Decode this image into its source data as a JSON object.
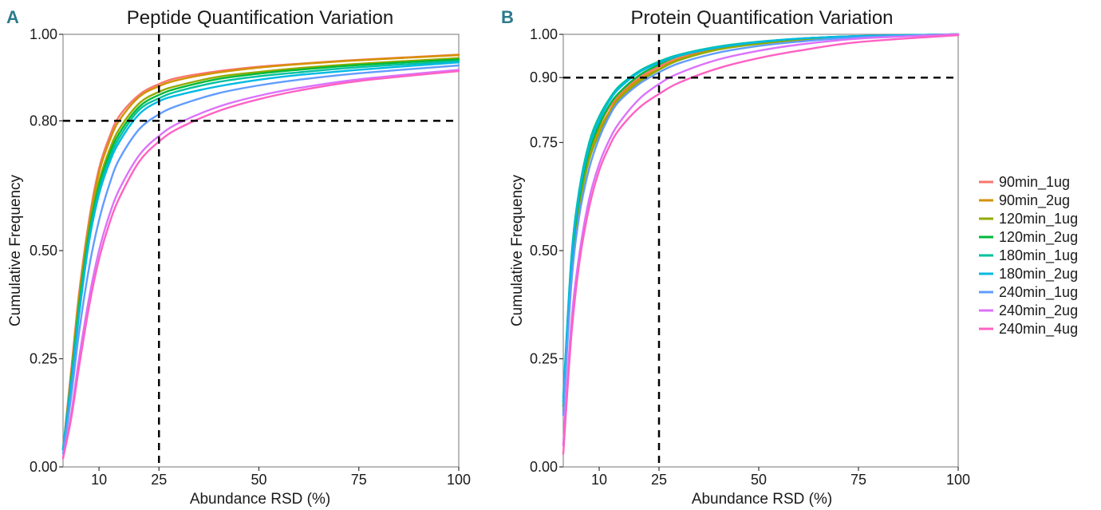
{
  "panels": [
    {
      "letter": "A"
    },
    {
      "letter": "B"
    }
  ],
  "legend": [
    {
      "name": "90min_1ug",
      "color": "#F8766D"
    },
    {
      "name": "90min_2ug",
      "color": "#D39200"
    },
    {
      "name": "120min_1ug",
      "color": "#93AA00"
    },
    {
      "name": "120min_2ug",
      "color": "#00BA38"
    },
    {
      "name": "180min_1ug",
      "color": "#00C19F"
    },
    {
      "name": "180min_2ug",
      "color": "#00B9E3"
    },
    {
      "name": "240min_1ug",
      "color": "#619CFF"
    },
    {
      "name": "240min_2ug",
      "color": "#DB72FB"
    },
    {
      "name": "240min_4ug",
      "color": "#FF61C3"
    }
  ],
  "chart_data": [
    {
      "type": "line",
      "title": "Peptide Quantification Variation",
      "xlabel": "Abundance RSD (%)",
      "ylabel": "Cumulative Frequency",
      "xlim": [
        1,
        100
      ],
      "ylim": [
        0,
        1
      ],
      "x_ticks": [
        10,
        25,
        50,
        75,
        100
      ],
      "x_tick_labels": [
        "10",
        "25",
        "50",
        "75",
        "100"
      ],
      "y_ticks": [
        0,
        0.25,
        0.5,
        0.8,
        1.0
      ],
      "y_tick_labels": [
        "0.00",
        "0.25",
        "0.50",
        "0.80",
        "1.00"
      ],
      "reference_lines": {
        "vertical_x": 25,
        "horizontal_y": 0.8,
        "style": "dashed"
      },
      "grid": false,
      "legend_position": "right",
      "x": [
        1,
        3,
        5,
        7.5,
        10,
        12.5,
        15,
        20,
        25,
        30,
        40,
        50,
        60,
        75,
        100
      ],
      "series": [
        {
          "name": "90min_1ug",
          "values": [
            0.04,
            0.22,
            0.4,
            0.57,
            0.69,
            0.76,
            0.81,
            0.86,
            0.885,
            0.9,
            0.915,
            0.925,
            0.932,
            0.941,
            0.953
          ]
        },
        {
          "name": "90min_2ug",
          "values": [
            0.04,
            0.21,
            0.39,
            0.56,
            0.68,
            0.75,
            0.8,
            0.855,
            0.88,
            0.895,
            0.912,
            0.923,
            0.931,
            0.94,
            0.952
          ]
        },
        {
          "name": "120min_1ug",
          "values": [
            0.04,
            0.2,
            0.38,
            0.55,
            0.66,
            0.73,
            0.78,
            0.84,
            0.867,
            0.882,
            0.902,
            0.913,
            0.922,
            0.932,
            0.945
          ]
        },
        {
          "name": "120min_2ug",
          "values": [
            0.04,
            0.2,
            0.37,
            0.54,
            0.65,
            0.72,
            0.77,
            0.832,
            0.86,
            0.876,
            0.897,
            0.909,
            0.918,
            0.929,
            0.942
          ]
        },
        {
          "name": "180min_1ug",
          "values": [
            0.04,
            0.19,
            0.36,
            0.53,
            0.64,
            0.71,
            0.76,
            0.825,
            0.852,
            0.869,
            0.89,
            0.903,
            0.912,
            0.924,
            0.938
          ]
        },
        {
          "name": "180min_2ug",
          "values": [
            0.04,
            0.19,
            0.35,
            0.52,
            0.63,
            0.7,
            0.75,
            0.815,
            0.845,
            0.86,
            0.88,
            0.895,
            0.906,
            0.918,
            0.935
          ]
        },
        {
          "name": "240min_1ug",
          "values": [
            0.03,
            0.16,
            0.31,
            0.46,
            0.57,
            0.65,
            0.71,
            0.78,
            0.815,
            0.836,
            0.864,
            0.882,
            0.895,
            0.91,
            0.928
          ]
        },
        {
          "name": "240min_2ug",
          "values": [
            0.02,
            0.12,
            0.25,
            0.39,
            0.5,
            0.58,
            0.64,
            0.72,
            0.765,
            0.795,
            0.833,
            0.858,
            0.876,
            0.896,
            0.918
          ]
        },
        {
          "name": "240min_4ug",
          "values": [
            0.02,
            0.11,
            0.23,
            0.37,
            0.48,
            0.56,
            0.62,
            0.705,
            0.752,
            0.783,
            0.823,
            0.85,
            0.87,
            0.892,
            0.915
          ]
        }
      ]
    },
    {
      "type": "line",
      "title": "Protein Quantification Variation",
      "xlabel": "Abundance RSD (%)",
      "ylabel": "Cumulative Frequency",
      "xlim": [
        1,
        100
      ],
      "ylim": [
        0,
        1
      ],
      "x_ticks": [
        10,
        25,
        50,
        75,
        100
      ],
      "x_tick_labels": [
        "10",
        "25",
        "50",
        "75",
        "100"
      ],
      "y_ticks": [
        0,
        0.25,
        0.5,
        0.75,
        0.9,
        1.0
      ],
      "y_tick_labels": [
        "0.00",
        "0.25",
        "0.50",
        "0.75",
        "0.90",
        "1.00"
      ],
      "reference_lines": {
        "vertical_x": 25,
        "horizontal_y": 0.9,
        "style": "dashed"
      },
      "grid": false,
      "legend_position": "right",
      "x": [
        1,
        3,
        5,
        7.5,
        10,
        12.5,
        15,
        20,
        25,
        30,
        40,
        50,
        60,
        75,
        100
      ],
      "series": [
        {
          "name": "90min_1ug",
          "values": [
            0.15,
            0.46,
            0.62,
            0.73,
            0.79,
            0.83,
            0.86,
            0.9,
            0.925,
            0.945,
            0.968,
            0.98,
            0.988,
            0.995,
            1.0
          ]
        },
        {
          "name": "90min_2ug",
          "values": [
            0.14,
            0.45,
            0.61,
            0.72,
            0.78,
            0.82,
            0.855,
            0.895,
            0.92,
            0.942,
            0.966,
            0.979,
            0.988,
            0.995,
            1.0
          ]
        },
        {
          "name": "120min_1ug",
          "values": [
            0.13,
            0.44,
            0.6,
            0.71,
            0.77,
            0.815,
            0.85,
            0.89,
            0.918,
            0.94,
            0.965,
            0.978,
            0.987,
            0.995,
            1.0
          ]
        },
        {
          "name": "120min_2ug",
          "values": [
            0.14,
            0.46,
            0.62,
            0.73,
            0.79,
            0.835,
            0.865,
            0.905,
            0.93,
            0.95,
            0.97,
            0.982,
            0.99,
            0.996,
            1.0
          ]
        },
        {
          "name": "180min_1ug",
          "values": [
            0.16,
            0.48,
            0.64,
            0.75,
            0.81,
            0.85,
            0.88,
            0.915,
            0.937,
            0.953,
            0.972,
            0.983,
            0.99,
            0.996,
            1.0
          ]
        },
        {
          "name": "180min_2ug",
          "values": [
            0.15,
            0.47,
            0.63,
            0.74,
            0.8,
            0.845,
            0.875,
            0.912,
            0.934,
            0.951,
            0.97,
            0.982,
            0.99,
            0.996,
            1.0
          ]
        },
        {
          "name": "240min_1ug",
          "values": [
            0.12,
            0.42,
            0.58,
            0.69,
            0.76,
            0.81,
            0.845,
            0.885,
            0.912,
            0.933,
            0.958,
            0.973,
            0.983,
            0.993,
            1.0
          ]
        },
        {
          "name": "240min_2ug",
          "values": [
            0.05,
            0.33,
            0.49,
            0.62,
            0.7,
            0.755,
            0.795,
            0.85,
            0.885,
            0.91,
            0.942,
            0.962,
            0.976,
            0.99,
            1.0
          ]
        },
        {
          "name": "240min_4ug",
          "values": [
            0.03,
            0.3,
            0.47,
            0.6,
            0.685,
            0.74,
            0.78,
            0.83,
            0.862,
            0.888,
            0.922,
            0.945,
            0.962,
            0.982,
            0.998
          ]
        }
      ]
    }
  ]
}
